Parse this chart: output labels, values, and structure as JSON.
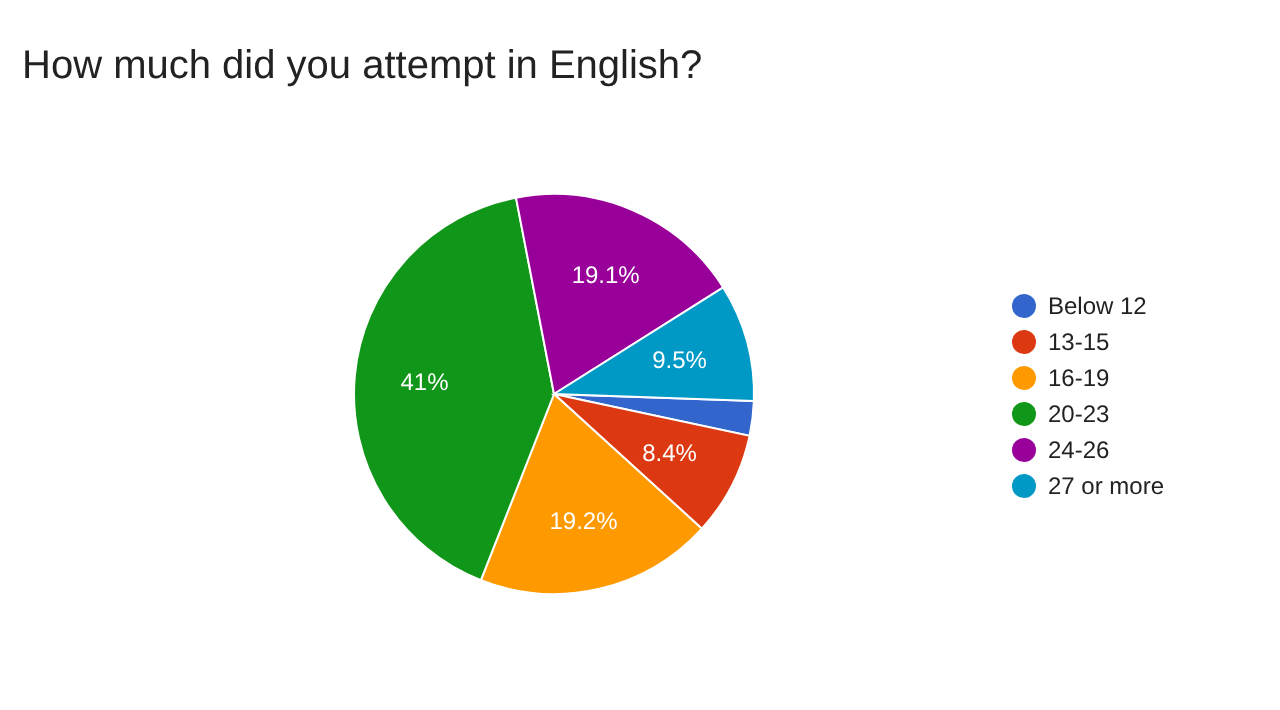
{
  "chart_data": {
    "type": "pie",
    "title": "How much did you attempt in English?",
    "categories": [
      "Below 12",
      "13-15",
      "16-19",
      "20-23",
      "24-26",
      "27 or more"
    ],
    "values": [
      2.8,
      8.4,
      19.2,
      41,
      19.1,
      9.5
    ],
    "value_labels": [
      null,
      "8.4%",
      "19.2%",
      "41%",
      "19.1%",
      "9.5%"
    ],
    "colors": [
      "#3366cc",
      "#dc3912",
      "#ff9900",
      "#109618",
      "#990099",
      "#0099c6"
    ],
    "legend": "right"
  }
}
